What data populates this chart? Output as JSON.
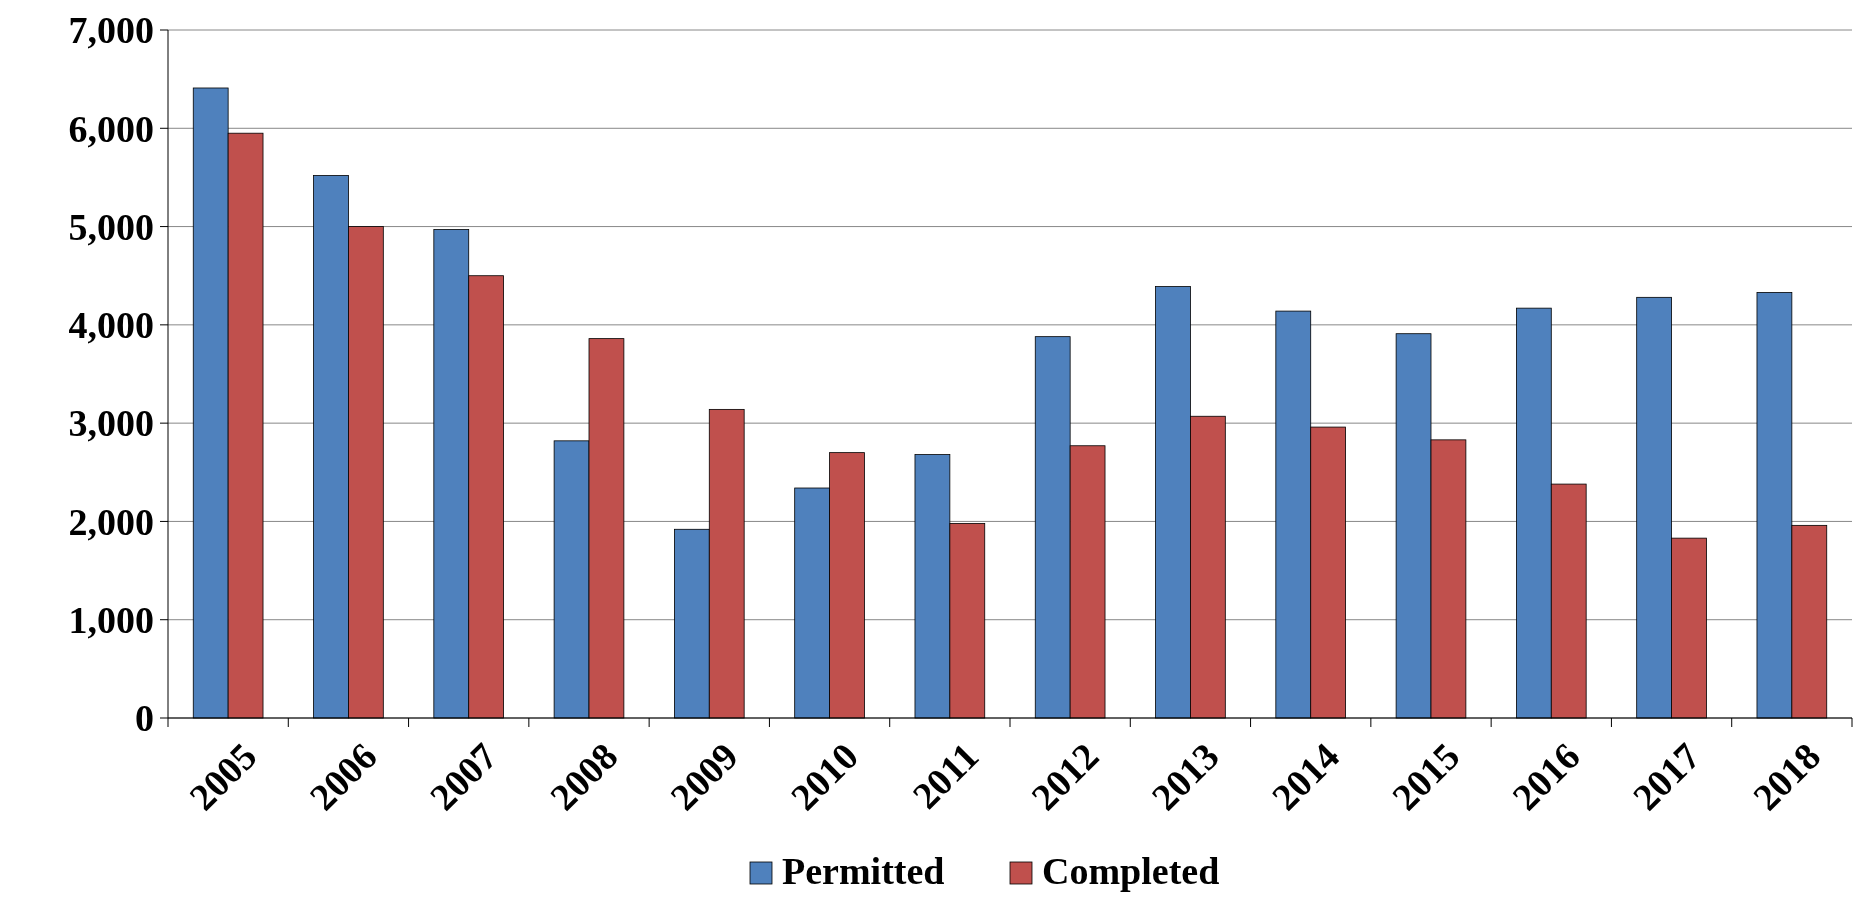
{
  "chart_data": {
    "type": "bar",
    "categories": [
      "2005",
      "2006",
      "2007",
      "2008",
      "2009",
      "2010",
      "2011",
      "2012",
      "2013",
      "2014",
      "2015",
      "2016",
      "2017",
      "2018"
    ],
    "series": [
      {
        "name": "Permitted",
        "color": "#4f81bd",
        "values": [
          6410,
          5520,
          4970,
          2820,
          1920,
          2340,
          2680,
          3880,
          4390,
          4140,
          3910,
          4170,
          4280,
          4330
        ]
      },
      {
        "name": "Completed",
        "color": "#c0504d",
        "values": [
          5950,
          5000,
          4500,
          3860,
          3140,
          2700,
          1980,
          2770,
          3070,
          2960,
          2830,
          2380,
          1830,
          1960
        ]
      }
    ],
    "ylim": [
      0,
      7000
    ],
    "yticks": [
      {
        "value": 0,
        "label": "0"
      },
      {
        "value": 1000,
        "label": "1,000"
      },
      {
        "value": 2000,
        "label": "2,000"
      },
      {
        "value": 3000,
        "label": "3,000"
      },
      {
        "value": 4000,
        "label": "4,000"
      },
      {
        "value": 5000,
        "label": "5,000"
      },
      {
        "value": 6000,
        "label": "6,000"
      },
      {
        "value": 7000,
        "label": "7,000"
      }
    ],
    "grid": "y",
    "legend": "bottom"
  }
}
